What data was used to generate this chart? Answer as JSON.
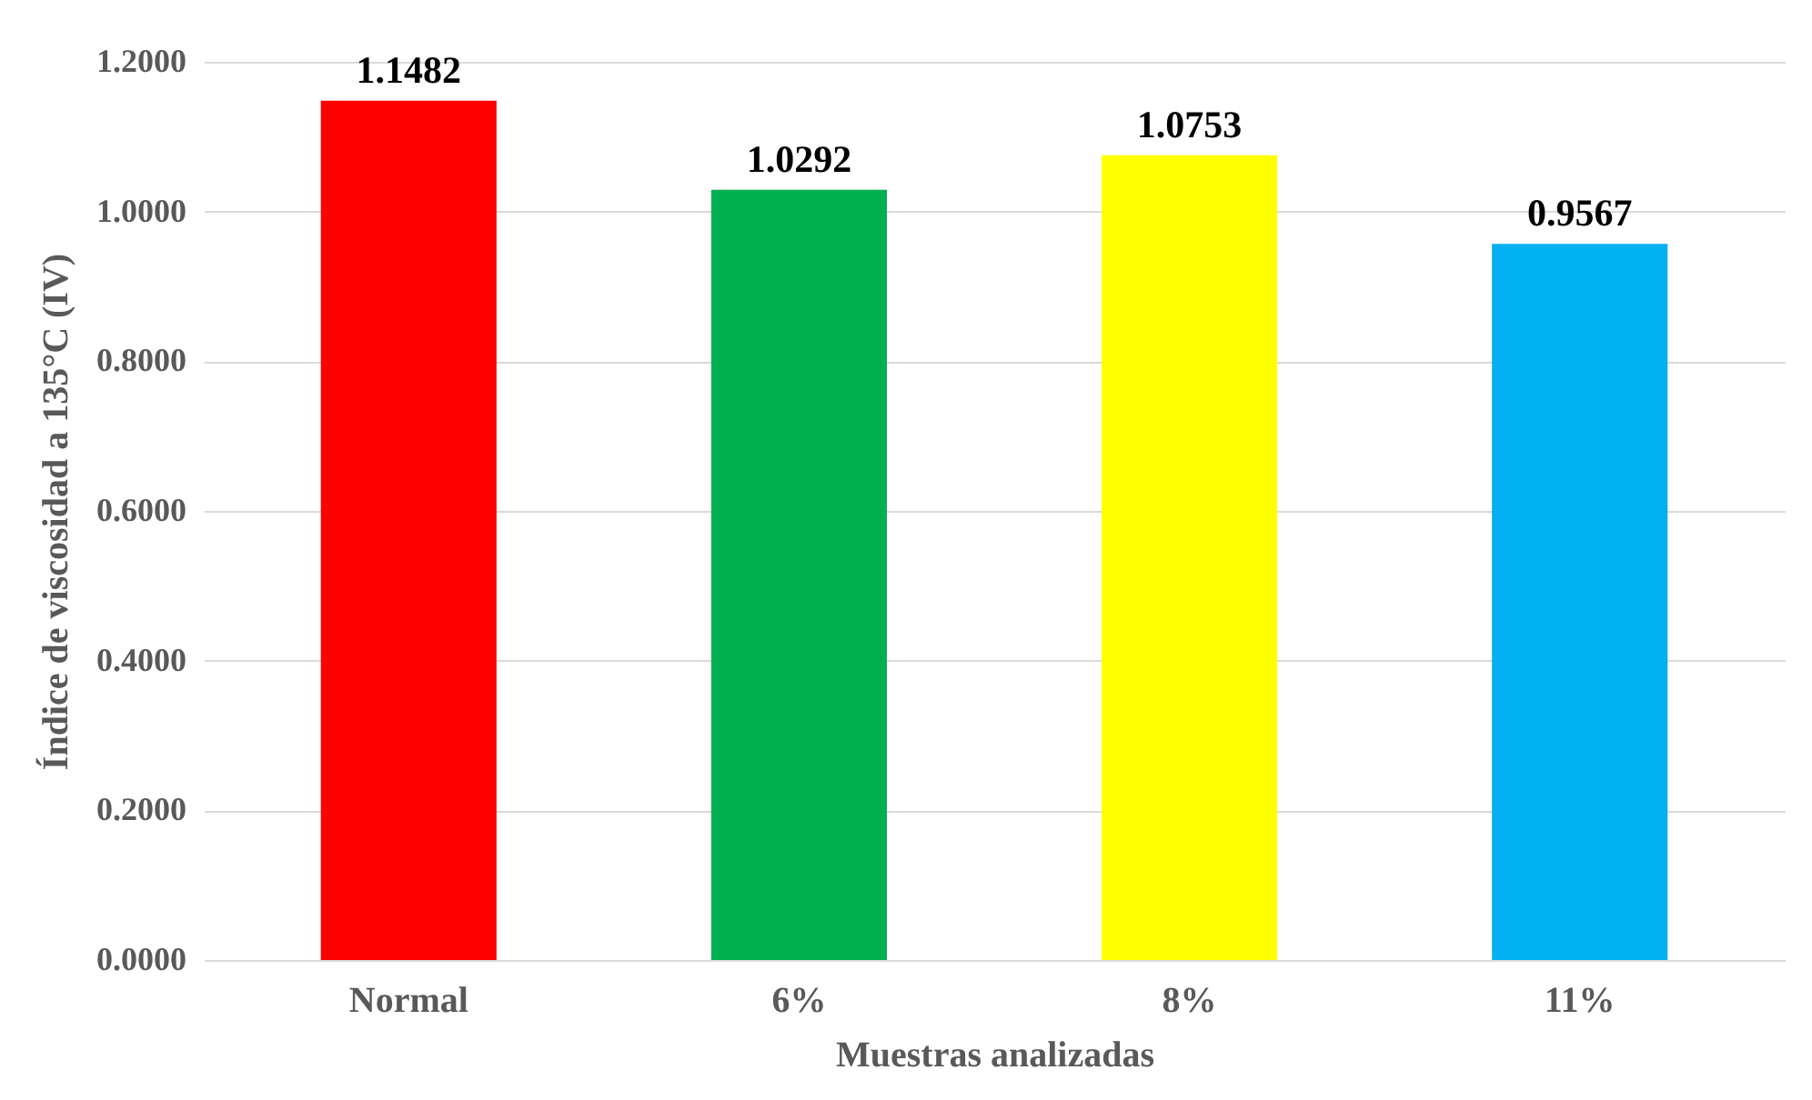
{
  "chart_data": {
    "type": "bar",
    "xlabel": "Muestras analizadas",
    "ylabel": "Índice de viscosidad a 135°C (IV)",
    "categories": [
      "Normal",
      "6%",
      "8%",
      "11%"
    ],
    "values": [
      1.1482,
      1.0292,
      1.0753,
      0.9567
    ],
    "colors": [
      "#ff0000",
      "#00b050",
      "#ffff00",
      "#00b0f0"
    ],
    "ylim": [
      0,
      1.2
    ],
    "yticks": [
      {
        "value": 0,
        "label": "0.0000"
      },
      {
        "value": 0.2,
        "label": "0.2000"
      },
      {
        "value": 0.4,
        "label": "0.4000"
      },
      {
        "value": 0.6,
        "label": "0.6000"
      },
      {
        "value": 0.8,
        "label": "0.8000"
      },
      {
        "value": 1.0,
        "label": "1.0000"
      },
      {
        "value": 1.2,
        "label": "1.2000"
      }
    ],
    "grid": "y",
    "data_labels": true,
    "legend": false
  }
}
